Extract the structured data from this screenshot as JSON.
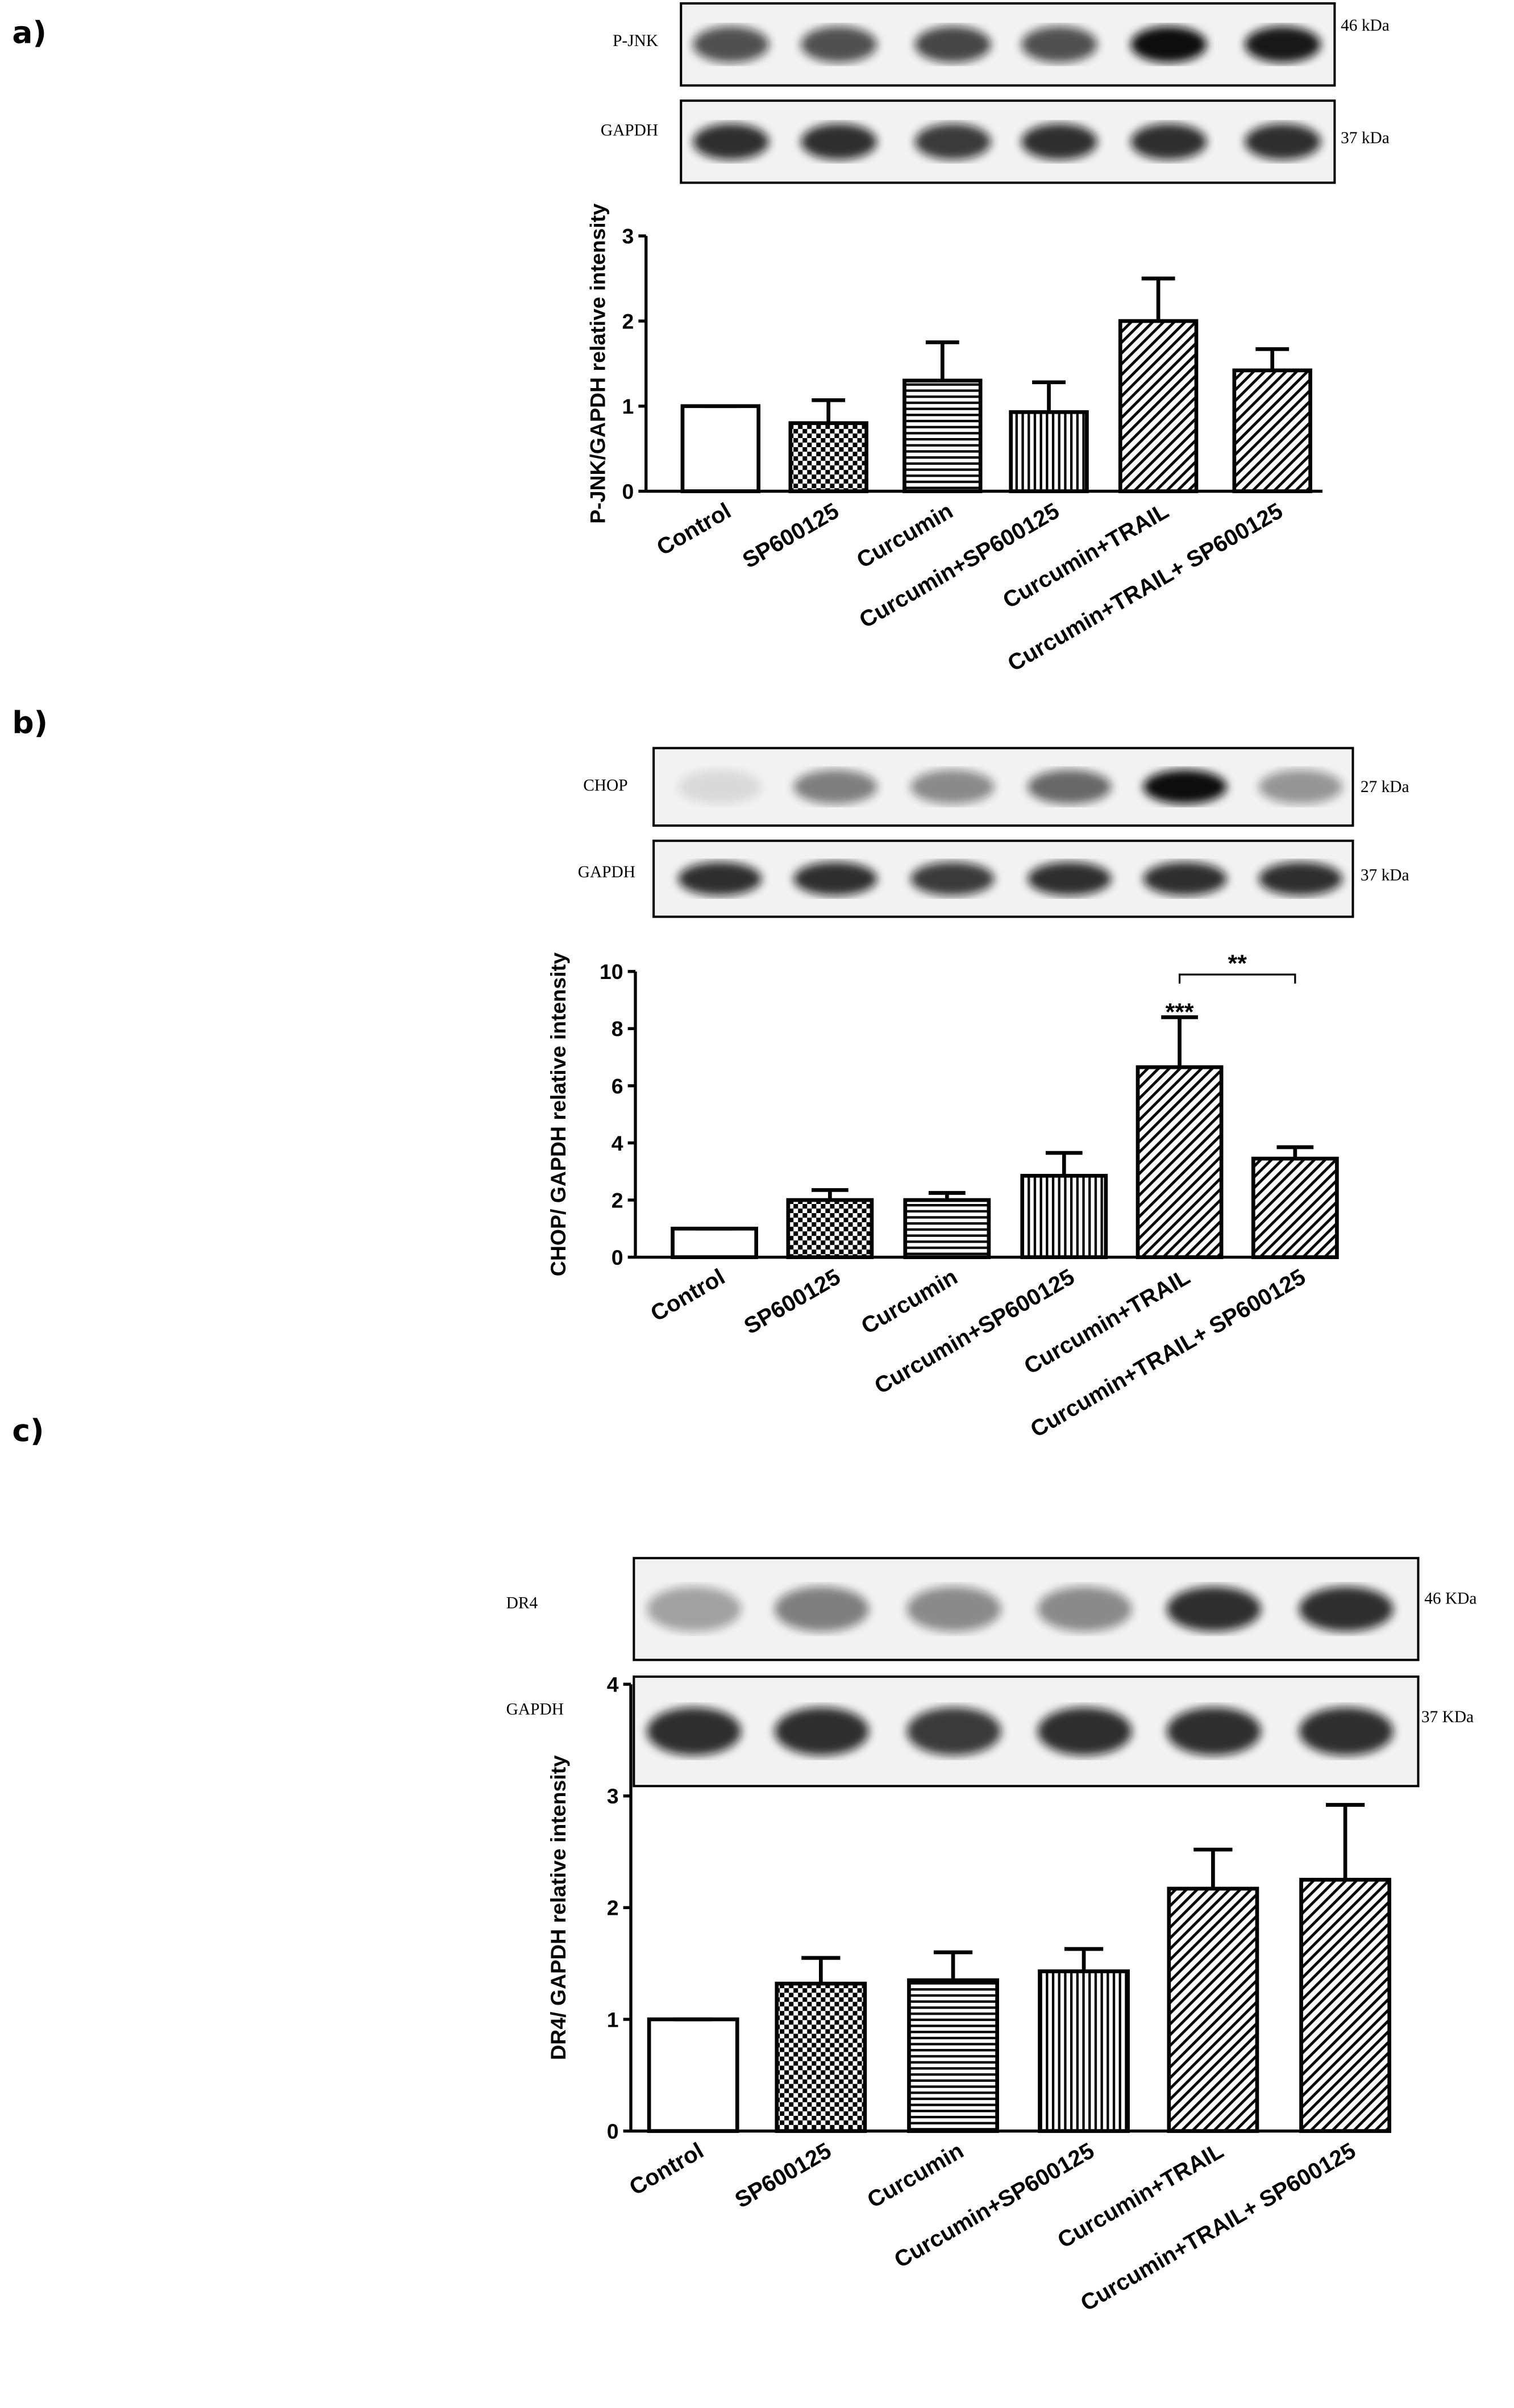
{
  "chart_data": [
    {
      "type": "bar",
      "panel": "a)",
      "y_label": "P-JNK/GAPDH relative intensity",
      "blots": [
        {
          "label": "P-JNK",
          "marker": "46 kDa"
        },
        {
          "label": "GAPDH",
          "marker": "37 kDa"
        }
      ],
      "categories": [
        "Control",
        "SP600125",
        "Curcumin",
        "Curcumin+SP600125",
        "Curcumin+TRAIL",
        "Curcumin+TRAIL+ SP600125"
      ],
      "values": [
        1,
        0.8,
        1.3,
        0.93,
        2.0,
        1.42
      ],
      "errors": [
        0,
        0.27,
        0.45,
        0.35,
        0.5,
        0.25
      ],
      "patterns": [
        "none",
        "checker",
        "horizontal",
        "vertical",
        "diagonal",
        "diagonal"
      ],
      "color": "#000000",
      "ylim": [
        0,
        3
      ],
      "yticks": [
        0,
        1,
        2,
        3
      ]
    },
    {
      "type": "bar",
      "panel": "b)",
      "y_label": "CHOP/ GAPDH relative intensity",
      "blots": [
        {
          "label": "CHOP",
          "marker": "27 kDa"
        },
        {
          "label": "GAPDH",
          "marker": "37 kDa"
        }
      ],
      "categories": [
        "Control",
        "SP600125",
        "Curcumin",
        "Curcumin+SP600125",
        "Curcumin+TRAIL",
        "Curcumin+TRAIL+ SP600125"
      ],
      "values": [
        1,
        2.0,
        2.0,
        2.85,
        6.65,
        3.45
      ],
      "errors": [
        0,
        0.35,
        0.25,
        0.8,
        1.75,
        0.4
      ],
      "patterns": [
        "none",
        "checker",
        "horizontal",
        "vertical",
        "diagonal",
        "diagonal"
      ],
      "color": "#000000",
      "ylim": [
        0,
        10
      ],
      "yticks": [
        0,
        2,
        4,
        6,
        8,
        10
      ],
      "annotations": [
        {
          "text": "***",
          "category": 4
        },
        {
          "text": "**",
          "from": 4,
          "to": 5
        }
      ]
    },
    {
      "type": "bar",
      "panel": "c)",
      "y_label": "DR4/ GAPDH relative intensity",
      "blots": [
        {
          "label": "DR4",
          "marker": "46 KDa"
        },
        {
          "label": "GAPDH",
          "marker": "37 KDa"
        }
      ],
      "categories": [
        "Control",
        "SP600125",
        "Curcumin",
        "Curcumin+SP600125",
        "Curcumin+TRAIL",
        "Curcumin+TRAIL+ SP600125"
      ],
      "values": [
        1,
        1.32,
        1.35,
        1.43,
        2.17,
        2.25
      ],
      "errors": [
        0,
        0.23,
        0.25,
        0.2,
        0.35,
        0.67
      ],
      "patterns": [
        "none",
        "checker",
        "horizontal",
        "vertical",
        "diagonal",
        "diagonal"
      ],
      "color": "#000000",
      "ylim": [
        0,
        4
      ],
      "yticks": [
        0,
        1,
        2,
        3,
        4
      ]
    }
  ]
}
